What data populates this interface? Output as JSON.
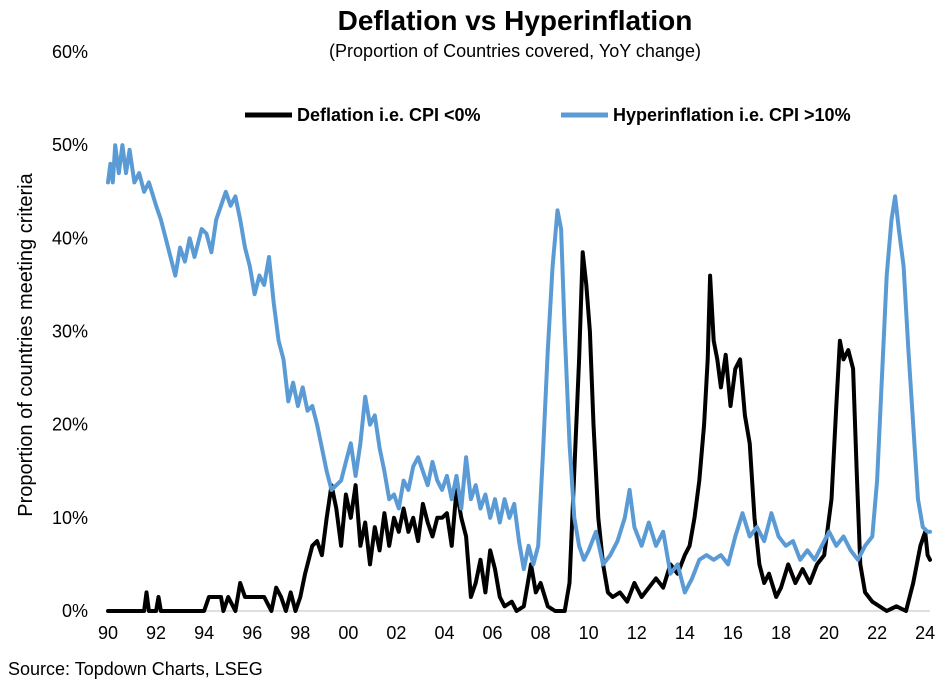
{
  "chart_data": {
    "type": "line",
    "title": "Deflation vs Hyperinflation",
    "subtitle": "(Proportion of Countries covered, YoY change)",
    "ylabel": "Proportion of countries meeting criteria",
    "xlabel": "",
    "source": "Source: Topdown Charts, LSEG",
    "xlim": [
      1990,
      2024.2
    ],
    "ylim": [
      0,
      60
    ],
    "x_ticks": [
      1990,
      1992,
      1994,
      1996,
      1998,
      2000,
      2002,
      2004,
      2006,
      2008,
      2010,
      2012,
      2014,
      2016,
      2018,
      2020,
      2022,
      2024
    ],
    "x_tick_labels": [
      "90",
      "92",
      "94",
      "96",
      "98",
      "00",
      "02",
      "04",
      "06",
      "08",
      "10",
      "12",
      "14",
      "16",
      "18",
      "20",
      "22",
      "24"
    ],
    "y_ticks": [
      0,
      10,
      20,
      30,
      40,
      50,
      60
    ],
    "y_tick_labels": [
      "0%",
      "10%",
      "20%",
      "30%",
      "40%",
      "50%",
      "60%"
    ],
    "grid": false,
    "legend_position": "top-right",
    "series": [
      {
        "name": "Deflation i.e. CPI <0%",
        "color": "#000000",
        "points": [
          [
            1990.0,
            0
          ],
          [
            1991.5,
            0
          ],
          [
            1991.6,
            2
          ],
          [
            1991.7,
            0
          ],
          [
            1992.0,
            0
          ],
          [
            1992.1,
            1.5
          ],
          [
            1992.2,
            0
          ],
          [
            1993.0,
            0
          ],
          [
            1994.0,
            0
          ],
          [
            1994.2,
            1.5
          ],
          [
            1994.7,
            1.5
          ],
          [
            1994.8,
            0
          ],
          [
            1995.0,
            1.5
          ],
          [
            1995.3,
            0
          ],
          [
            1995.5,
            3
          ],
          [
            1995.7,
            1.5
          ],
          [
            1996.0,
            1.5
          ],
          [
            1996.5,
            1.5
          ],
          [
            1996.8,
            0
          ],
          [
            1997.0,
            2.5
          ],
          [
            1997.2,
            1.5
          ],
          [
            1997.4,
            0
          ],
          [
            1997.6,
            2
          ],
          [
            1997.8,
            0
          ],
          [
            1998.0,
            1.5
          ],
          [
            1998.2,
            4
          ],
          [
            1998.5,
            7
          ],
          [
            1998.7,
            7.5
          ],
          [
            1998.9,
            6
          ],
          [
            1999.1,
            10
          ],
          [
            1999.3,
            13.5
          ],
          [
            1999.5,
            11
          ],
          [
            1999.7,
            7
          ],
          [
            1999.9,
            12.5
          ],
          [
            2000.1,
            10
          ],
          [
            2000.3,
            13.5
          ],
          [
            2000.5,
            7
          ],
          [
            2000.7,
            9.5
          ],
          [
            2000.9,
            5
          ],
          [
            2001.1,
            9
          ],
          [
            2001.3,
            6.5
          ],
          [
            2001.5,
            10.5
          ],
          [
            2001.7,
            7
          ],
          [
            2001.9,
            10
          ],
          [
            2002.1,
            8.5
          ],
          [
            2002.3,
            11
          ],
          [
            2002.5,
            8.5
          ],
          [
            2002.7,
            10
          ],
          [
            2002.9,
            7.5
          ],
          [
            2003.1,
            11.5
          ],
          [
            2003.3,
            9.5
          ],
          [
            2003.5,
            8
          ],
          [
            2003.7,
            10
          ],
          [
            2003.9,
            10
          ],
          [
            2004.1,
            10.5
          ],
          [
            2004.3,
            7
          ],
          [
            2004.5,
            13
          ],
          [
            2004.7,
            10
          ],
          [
            2004.9,
            8
          ],
          [
            2005.1,
            1.5
          ],
          [
            2005.3,
            3
          ],
          [
            2005.5,
            5.5
          ],
          [
            2005.7,
            2
          ],
          [
            2005.9,
            6.5
          ],
          [
            2006.1,
            4.5
          ],
          [
            2006.3,
            1.5
          ],
          [
            2006.5,
            0.5
          ],
          [
            2006.8,
            1
          ],
          [
            2007.0,
            0
          ],
          [
            2007.3,
            0.5
          ],
          [
            2007.6,
            5
          ],
          [
            2007.8,
            2
          ],
          [
            2008.0,
            3
          ],
          [
            2008.3,
            0.5
          ],
          [
            2008.6,
            0
          ],
          [
            2009.0,
            0
          ],
          [
            2009.2,
            3
          ],
          [
            2009.4,
            15
          ],
          [
            2009.6,
            27
          ],
          [
            2009.75,
            38.5
          ],
          [
            2009.9,
            35
          ],
          [
            2010.05,
            30
          ],
          [
            2010.2,
            20
          ],
          [
            2010.4,
            10
          ],
          [
            2010.6,
            5
          ],
          [
            2010.8,
            2
          ],
          [
            2011.0,
            1.5
          ],
          [
            2011.3,
            2
          ],
          [
            2011.6,
            1
          ],
          [
            2011.9,
            3
          ],
          [
            2012.2,
            1.5
          ],
          [
            2012.5,
            2.5
          ],
          [
            2012.8,
            3.5
          ],
          [
            2013.1,
            2.5
          ],
          [
            2013.4,
            5
          ],
          [
            2013.7,
            4
          ],
          [
            2014.0,
            6
          ],
          [
            2014.2,
            7
          ],
          [
            2014.4,
            10
          ],
          [
            2014.6,
            14
          ],
          [
            2014.8,
            20
          ],
          [
            2014.95,
            27
          ],
          [
            2015.05,
            36
          ],
          [
            2015.2,
            29
          ],
          [
            2015.35,
            27
          ],
          [
            2015.5,
            24
          ],
          [
            2015.7,
            27.5
          ],
          [
            2015.9,
            22
          ],
          [
            2016.1,
            26
          ],
          [
            2016.3,
            27
          ],
          [
            2016.5,
            21
          ],
          [
            2016.7,
            18
          ],
          [
            2016.9,
            10
          ],
          [
            2017.1,
            5
          ],
          [
            2017.3,
            3
          ],
          [
            2017.5,
            4
          ],
          [
            2017.8,
            1.5
          ],
          [
            2018.0,
            2.5
          ],
          [
            2018.3,
            5
          ],
          [
            2018.6,
            3
          ],
          [
            2018.9,
            4.5
          ],
          [
            2019.2,
            3
          ],
          [
            2019.5,
            5
          ],
          [
            2019.8,
            6
          ],
          [
            2020.1,
            12
          ],
          [
            2020.3,
            22
          ],
          [
            2020.45,
            29
          ],
          [
            2020.6,
            27
          ],
          [
            2020.8,
            28
          ],
          [
            2021.0,
            26
          ],
          [
            2021.15,
            15
          ],
          [
            2021.3,
            5
          ],
          [
            2021.5,
            2
          ],
          [
            2021.8,
            1
          ],
          [
            2022.1,
            0.5
          ],
          [
            2022.4,
            0
          ],
          [
            2022.8,
            0.5
          ],
          [
            2023.2,
            0
          ],
          [
            2023.5,
            3
          ],
          [
            2023.8,
            7
          ],
          [
            2024.0,
            8.5
          ],
          [
            2024.1,
            6
          ],
          [
            2024.2,
            5.5
          ]
        ]
      },
      {
        "name": "Hyperinflation i.e. CPI >10%",
        "color": "#5b9bd5",
        "points": [
          [
            1990.0,
            46
          ],
          [
            1990.1,
            48
          ],
          [
            1990.2,
            46
          ],
          [
            1990.3,
            50
          ],
          [
            1990.45,
            47
          ],
          [
            1990.6,
            50
          ],
          [
            1990.75,
            47
          ],
          [
            1990.9,
            49.5
          ],
          [
            1991.1,
            46
          ],
          [
            1991.3,
            47
          ],
          [
            1991.5,
            45
          ],
          [
            1991.7,
            46
          ],
          [
            1992.0,
            43.5
          ],
          [
            1992.2,
            42
          ],
          [
            1992.4,
            40
          ],
          [
            1992.6,
            38
          ],
          [
            1992.8,
            36
          ],
          [
            1993.0,
            39
          ],
          [
            1993.2,
            37.5
          ],
          [
            1993.4,
            40
          ],
          [
            1993.6,
            38
          ],
          [
            1993.9,
            41
          ],
          [
            1994.1,
            40.5
          ],
          [
            1994.3,
            38.5
          ],
          [
            1994.5,
            42
          ],
          [
            1994.7,
            43.5
          ],
          [
            1994.9,
            45
          ],
          [
            1995.1,
            43.5
          ],
          [
            1995.3,
            44.5
          ],
          [
            1995.5,
            42
          ],
          [
            1995.7,
            39
          ],
          [
            1995.9,
            37
          ],
          [
            1996.1,
            34
          ],
          [
            1996.3,
            36
          ],
          [
            1996.5,
            35
          ],
          [
            1996.7,
            38
          ],
          [
            1996.9,
            33
          ],
          [
            1997.1,
            29
          ],
          [
            1997.3,
            27
          ],
          [
            1997.5,
            22.5
          ],
          [
            1997.7,
            24.5
          ],
          [
            1997.9,
            22
          ],
          [
            1998.1,
            24
          ],
          [
            1998.3,
            21.5
          ],
          [
            1998.5,
            22
          ],
          [
            1998.7,
            20
          ],
          [
            1998.9,
            17.5
          ],
          [
            1999.1,
            15
          ],
          [
            1999.3,
            13
          ],
          [
            1999.5,
            13.5
          ],
          [
            1999.7,
            14
          ],
          [
            1999.9,
            16
          ],
          [
            2000.1,
            18
          ],
          [
            2000.3,
            14.5
          ],
          [
            2000.5,
            18
          ],
          [
            2000.7,
            23
          ],
          [
            2000.9,
            20
          ],
          [
            2001.1,
            21
          ],
          [
            2001.3,
            17.5
          ],
          [
            2001.5,
            15
          ],
          [
            2001.7,
            12
          ],
          [
            2001.9,
            12.5
          ],
          [
            2002.1,
            11
          ],
          [
            2002.3,
            14
          ],
          [
            2002.5,
            13
          ],
          [
            2002.7,
            15.5
          ],
          [
            2002.9,
            16.5
          ],
          [
            2003.1,
            15
          ],
          [
            2003.3,
            13.5
          ],
          [
            2003.5,
            16
          ],
          [
            2003.7,
            14
          ],
          [
            2003.9,
            13
          ],
          [
            2004.1,
            14.5
          ],
          [
            2004.3,
            12
          ],
          [
            2004.5,
            14.5
          ],
          [
            2004.7,
            11
          ],
          [
            2004.9,
            16.5
          ],
          [
            2005.1,
            12
          ],
          [
            2005.3,
            13.5
          ],
          [
            2005.5,
            11
          ],
          [
            2005.7,
            12.5
          ],
          [
            2005.9,
            10
          ],
          [
            2006.1,
            12
          ],
          [
            2006.3,
            9.5
          ],
          [
            2006.5,
            12
          ],
          [
            2006.7,
            10
          ],
          [
            2006.9,
            11.5
          ],
          [
            2007.1,
            7.5
          ],
          [
            2007.3,
            4.5
          ],
          [
            2007.5,
            7
          ],
          [
            2007.7,
            5
          ],
          [
            2007.9,
            7
          ],
          [
            2008.1,
            17
          ],
          [
            2008.3,
            28
          ],
          [
            2008.5,
            37
          ],
          [
            2008.7,
            43
          ],
          [
            2008.85,
            41
          ],
          [
            2009.0,
            30
          ],
          [
            2009.2,
            18
          ],
          [
            2009.4,
            10
          ],
          [
            2009.6,
            7
          ],
          [
            2009.8,
            5.5
          ],
          [
            2010.0,
            6.5
          ],
          [
            2010.3,
            8.5
          ],
          [
            2010.6,
            5
          ],
          [
            2010.9,
            6
          ],
          [
            2011.2,
            7.5
          ],
          [
            2011.5,
            10
          ],
          [
            2011.7,
            13
          ],
          [
            2011.9,
            9
          ],
          [
            2012.2,
            7
          ],
          [
            2012.5,
            9.5
          ],
          [
            2012.8,
            7
          ],
          [
            2013.1,
            8.5
          ],
          [
            2013.4,
            4
          ],
          [
            2013.7,
            5
          ],
          [
            2014.0,
            2
          ],
          [
            2014.3,
            3.5
          ],
          [
            2014.6,
            5.5
          ],
          [
            2014.9,
            6
          ],
          [
            2015.2,
            5.5
          ],
          [
            2015.5,
            6
          ],
          [
            2015.8,
            5
          ],
          [
            2016.1,
            8
          ],
          [
            2016.4,
            10.5
          ],
          [
            2016.7,
            8
          ],
          [
            2017.0,
            9
          ],
          [
            2017.3,
            7.5
          ],
          [
            2017.6,
            10.5
          ],
          [
            2017.9,
            8
          ],
          [
            2018.2,
            7
          ],
          [
            2018.5,
            7.5
          ],
          [
            2018.8,
            5.5
          ],
          [
            2019.1,
            6.5
          ],
          [
            2019.4,
            5.5
          ],
          [
            2019.7,
            7
          ],
          [
            2020.0,
            8.5
          ],
          [
            2020.3,
            7
          ],
          [
            2020.6,
            8
          ],
          [
            2020.9,
            6.5
          ],
          [
            2021.2,
            5.5
          ],
          [
            2021.5,
            7
          ],
          [
            2021.8,
            8
          ],
          [
            2022.0,
            14
          ],
          [
            2022.2,
            25
          ],
          [
            2022.4,
            36
          ],
          [
            2022.6,
            42
          ],
          [
            2022.75,
            44.5
          ],
          [
            2022.9,
            41
          ],
          [
            2023.1,
            37
          ],
          [
            2023.3,
            28
          ],
          [
            2023.5,
            20
          ],
          [
            2023.7,
            12
          ],
          [
            2023.9,
            9
          ],
          [
            2024.1,
            8.5
          ],
          [
            2024.2,
            8.5
          ]
        ]
      }
    ]
  }
}
